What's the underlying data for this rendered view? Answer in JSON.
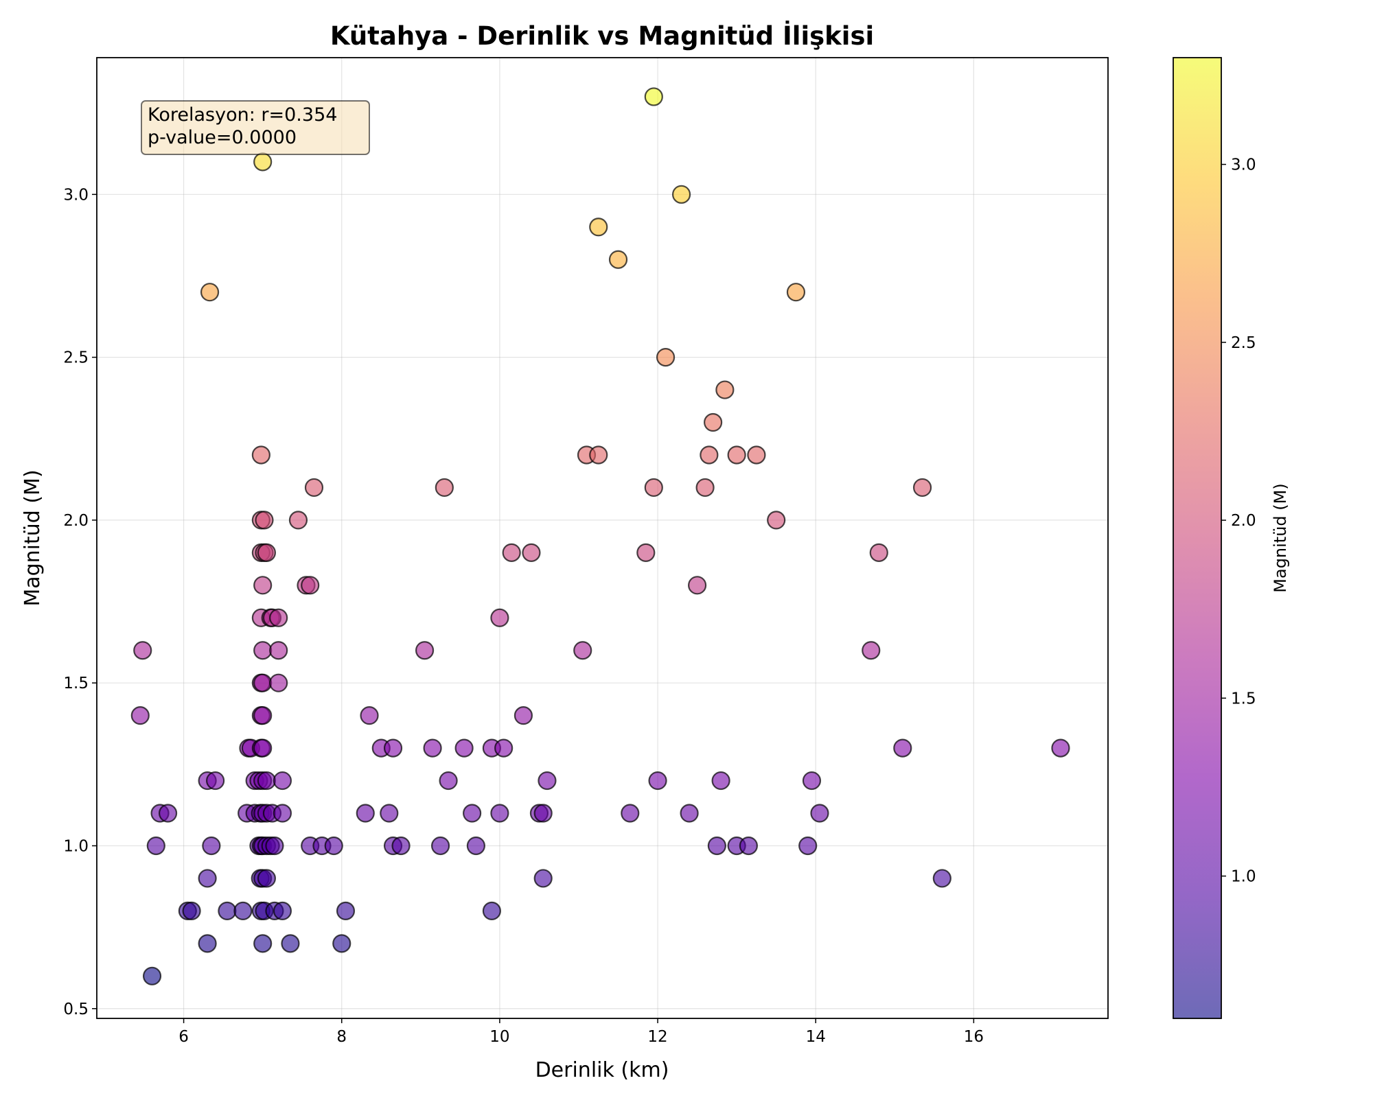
{
  "chart_data": {
    "type": "scatter",
    "title": "Kütahya - Derinlik vs Magnitüd İlişkisi",
    "xlabel": "Derinlik (km)",
    "ylabel": "Magnitüd (M)",
    "xlim": [
      4.9,
      17.7
    ],
    "ylim": [
      0.47,
      3.42
    ],
    "xticks": [
      6,
      8,
      10,
      12,
      14,
      16
    ],
    "xtick_labels": [
      "6",
      "8",
      "10",
      "12",
      "14",
      "16"
    ],
    "yticks": [
      0.5,
      1.0,
      1.5,
      2.0,
      2.5,
      3.0
    ],
    "ytick_labels": [
      "0.5",
      "1.0",
      "1.5",
      "2.0",
      "2.5",
      "3.0"
    ],
    "grid": true,
    "annotation": {
      "lines": [
        "Korelasyon: r=0.354",
        "p-value=0.0000"
      ],
      "position": "top-left"
    },
    "colorbar": {
      "label": "Magnitüd (M)",
      "colormap": "plasma",
      "range": [
        0.6,
        3.3
      ],
      "ticks": [
        1.0,
        1.5,
        2.0,
        2.5,
        3.0
      ],
      "tick_labels": [
        "1.0",
        "1.5",
        "2.0",
        "2.5",
        "3.0"
      ]
    },
    "points": [
      {
        "x": 5.6,
        "y": 0.6
      },
      {
        "x": 6.3,
        "y": 0.7
      },
      {
        "x": 7.0,
        "y": 0.7
      },
      {
        "x": 7.35,
        "y": 0.7
      },
      {
        "x": 8.0,
        "y": 0.7
      },
      {
        "x": 6.05,
        "y": 0.8
      },
      {
        "x": 6.1,
        "y": 0.8
      },
      {
        "x": 6.55,
        "y": 0.8
      },
      {
        "x": 6.75,
        "y": 0.8
      },
      {
        "x": 6.98,
        "y": 0.8
      },
      {
        "x": 7.02,
        "y": 0.8
      },
      {
        "x": 7.15,
        "y": 0.8
      },
      {
        "x": 7.25,
        "y": 0.8
      },
      {
        "x": 8.05,
        "y": 0.8
      },
      {
        "x": 9.9,
        "y": 0.8
      },
      {
        "x": 6.3,
        "y": 0.9
      },
      {
        "x": 6.97,
        "y": 0.9
      },
      {
        "x": 7.0,
        "y": 0.9
      },
      {
        "x": 7.05,
        "y": 0.9
      },
      {
        "x": 10.55,
        "y": 0.9
      },
      {
        "x": 15.6,
        "y": 0.9
      },
      {
        "x": 5.65,
        "y": 1.0
      },
      {
        "x": 6.35,
        "y": 1.0
      },
      {
        "x": 6.95,
        "y": 1.0
      },
      {
        "x": 6.98,
        "y": 1.0
      },
      {
        "x": 7.0,
        "y": 1.0
      },
      {
        "x": 7.05,
        "y": 1.0
      },
      {
        "x": 7.1,
        "y": 1.0
      },
      {
        "x": 7.15,
        "y": 1.0
      },
      {
        "x": 7.6,
        "y": 1.0
      },
      {
        "x": 7.75,
        "y": 1.0
      },
      {
        "x": 7.9,
        "y": 1.0
      },
      {
        "x": 8.65,
        "y": 1.0
      },
      {
        "x": 8.75,
        "y": 1.0
      },
      {
        "x": 9.25,
        "y": 1.0
      },
      {
        "x": 9.7,
        "y": 1.0
      },
      {
        "x": 12.75,
        "y": 1.0
      },
      {
        "x": 13.0,
        "y": 1.0
      },
      {
        "x": 13.15,
        "y": 1.0
      },
      {
        "x": 13.9,
        "y": 1.0
      },
      {
        "x": 5.7,
        "y": 1.1
      },
      {
        "x": 5.8,
        "y": 1.1
      },
      {
        "x": 6.8,
        "y": 1.1
      },
      {
        "x": 6.9,
        "y": 1.1
      },
      {
        "x": 6.97,
        "y": 1.1
      },
      {
        "x": 7.0,
        "y": 1.1
      },
      {
        "x": 7.05,
        "y": 1.1
      },
      {
        "x": 7.12,
        "y": 1.1
      },
      {
        "x": 7.25,
        "y": 1.1
      },
      {
        "x": 8.3,
        "y": 1.1
      },
      {
        "x": 8.6,
        "y": 1.1
      },
      {
        "x": 9.65,
        "y": 1.1
      },
      {
        "x": 10.0,
        "y": 1.1
      },
      {
        "x": 10.5,
        "y": 1.1
      },
      {
        "x": 10.55,
        "y": 1.1
      },
      {
        "x": 11.65,
        "y": 1.1
      },
      {
        "x": 12.4,
        "y": 1.1
      },
      {
        "x": 14.05,
        "y": 1.1
      },
      {
        "x": 6.3,
        "y": 1.2
      },
      {
        "x": 6.4,
        "y": 1.2
      },
      {
        "x": 6.9,
        "y": 1.2
      },
      {
        "x": 6.95,
        "y": 1.2
      },
      {
        "x": 7.0,
        "y": 1.2
      },
      {
        "x": 7.05,
        "y": 1.2
      },
      {
        "x": 7.25,
        "y": 1.2
      },
      {
        "x": 9.35,
        "y": 1.2
      },
      {
        "x": 10.6,
        "y": 1.2
      },
      {
        "x": 12.0,
        "y": 1.2
      },
      {
        "x": 12.8,
        "y": 1.2
      },
      {
        "x": 13.95,
        "y": 1.2
      },
      {
        "x": 6.82,
        "y": 1.3
      },
      {
        "x": 6.85,
        "y": 1.3
      },
      {
        "x": 6.98,
        "y": 1.3
      },
      {
        "x": 7.0,
        "y": 1.3
      },
      {
        "x": 8.5,
        "y": 1.3
      },
      {
        "x": 8.65,
        "y": 1.3
      },
      {
        "x": 9.15,
        "y": 1.3
      },
      {
        "x": 9.55,
        "y": 1.3
      },
      {
        "x": 9.9,
        "y": 1.3
      },
      {
        "x": 10.05,
        "y": 1.3
      },
      {
        "x": 15.1,
        "y": 1.3
      },
      {
        "x": 17.1,
        "y": 1.3
      },
      {
        "x": 5.45,
        "y": 1.4
      },
      {
        "x": 6.98,
        "y": 1.4
      },
      {
        "x": 7.0,
        "y": 1.4
      },
      {
        "x": 8.35,
        "y": 1.4
      },
      {
        "x": 10.3,
        "y": 1.4
      },
      {
        "x": 6.98,
        "y": 1.5
      },
      {
        "x": 7.0,
        "y": 1.5
      },
      {
        "x": 7.2,
        "y": 1.5
      },
      {
        "x": 5.48,
        "y": 1.6
      },
      {
        "x": 7.0,
        "y": 1.6
      },
      {
        "x": 7.2,
        "y": 1.6
      },
      {
        "x": 9.05,
        "y": 1.6
      },
      {
        "x": 11.05,
        "y": 1.6
      },
      {
        "x": 14.7,
        "y": 1.6
      },
      {
        "x": 6.98,
        "y": 1.7
      },
      {
        "x": 7.1,
        "y": 1.7
      },
      {
        "x": 7.12,
        "y": 1.7
      },
      {
        "x": 7.2,
        "y": 1.7
      },
      {
        "x": 10.0,
        "y": 1.7
      },
      {
        "x": 7.0,
        "y": 1.8
      },
      {
        "x": 7.55,
        "y": 1.8
      },
      {
        "x": 7.6,
        "y": 1.8
      },
      {
        "x": 12.5,
        "y": 1.8
      },
      {
        "x": 6.98,
        "y": 1.9
      },
      {
        "x": 7.02,
        "y": 1.9
      },
      {
        "x": 7.05,
        "y": 1.9
      },
      {
        "x": 10.15,
        "y": 1.9
      },
      {
        "x": 10.4,
        "y": 1.9
      },
      {
        "x": 11.85,
        "y": 1.9
      },
      {
        "x": 14.8,
        "y": 1.9
      },
      {
        "x": 6.98,
        "y": 2.0
      },
      {
        "x": 7.02,
        "y": 2.0
      },
      {
        "x": 7.45,
        "y": 2.0
      },
      {
        "x": 13.5,
        "y": 2.0
      },
      {
        "x": 7.65,
        "y": 2.1
      },
      {
        "x": 9.3,
        "y": 2.1
      },
      {
        "x": 11.95,
        "y": 2.1
      },
      {
        "x": 12.6,
        "y": 2.1
      },
      {
        "x": 15.35,
        "y": 2.1
      },
      {
        "x": 6.98,
        "y": 2.2
      },
      {
        "x": 11.1,
        "y": 2.2
      },
      {
        "x": 11.25,
        "y": 2.2
      },
      {
        "x": 12.65,
        "y": 2.2
      },
      {
        "x": 13.0,
        "y": 2.2
      },
      {
        "x": 13.25,
        "y": 2.2
      },
      {
        "x": 12.7,
        "y": 2.3
      },
      {
        "x": 12.85,
        "y": 2.4
      },
      {
        "x": 12.1,
        "y": 2.5
      },
      {
        "x": 6.33,
        "y": 2.7
      },
      {
        "x": 13.75,
        "y": 2.7
      },
      {
        "x": 11.5,
        "y": 2.8
      },
      {
        "x": 11.25,
        "y": 2.9
      },
      {
        "x": 12.3,
        "y": 3.0
      },
      {
        "x": 7.0,
        "y": 3.1
      },
      {
        "x": 11.95,
        "y": 3.3
      }
    ]
  }
}
